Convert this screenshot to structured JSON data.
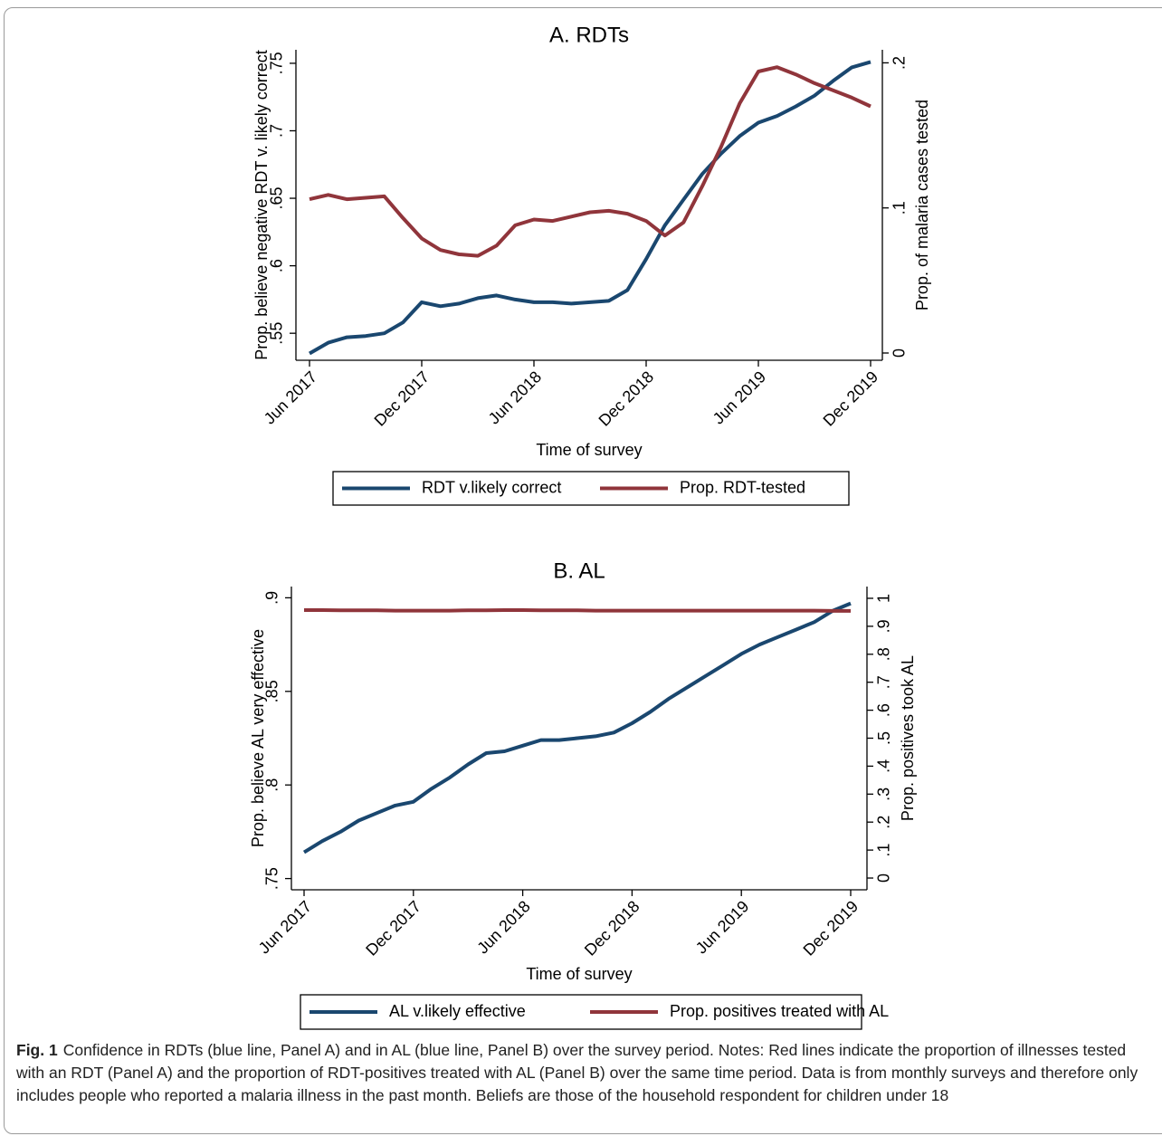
{
  "chart_data": [
    {
      "type": "line",
      "title": "A. RDTs",
      "xlabel": "Time of survey",
      "ylabel": "Prop. believe negative RDT v. likely correct",
      "y2label": "Prop. of malaria cases tested",
      "x": [
        "2017-06",
        "2017-07",
        "2017-08",
        "2017-09",
        "2017-10",
        "2017-11",
        "2017-12",
        "2018-01",
        "2018-02",
        "2018-03",
        "2018-04",
        "2018-05",
        "2018-06",
        "2018-07",
        "2018-08",
        "2018-09",
        "2018-10",
        "2018-11",
        "2018-12",
        "2019-01",
        "2019-02",
        "2019-03",
        "2019-04",
        "2019-05",
        "2019-06",
        "2019-07",
        "2019-08",
        "2019-09",
        "2019-10",
        "2019-11",
        "2019-12"
      ],
      "xticks": [
        {
          "value": "2017-06",
          "label": "Jun 2017"
        },
        {
          "value": "2017-12",
          "label": "Dec 2017"
        },
        {
          "value": "2018-06",
          "label": "Jun 2018"
        },
        {
          "value": "2018-12",
          "label": "Dec 2018"
        },
        {
          "value": "2019-06",
          "label": "Jun 2019"
        },
        {
          "value": "2019-12",
          "label": "Dec 2019"
        }
      ],
      "ylim": [
        0.53,
        0.76
      ],
      "yticks": [
        {
          "value": 0.55,
          "label": ".55"
        },
        {
          "value": 0.6,
          "label": ".6"
        },
        {
          "value": 0.65,
          "label": ".65"
        },
        {
          "value": 0.7,
          "label": ".7"
        },
        {
          "value": 0.75,
          "label": ".75"
        }
      ],
      "y2lim": [
        -0.005,
        0.209
      ],
      "y2ticks": [
        0,
        {
          "value": 0.1,
          "label": ".1"
        },
        {
          "value": 0.2,
          "label": ".2"
        }
      ],
      "series": [
        {
          "name": "RDT v.likely correct",
          "color": "#1a476f",
          "values": [
            0.535,
            0.543,
            0.547,
            0.548,
            0.55,
            0.558,
            0.573,
            0.57,
            0.572,
            0.576,
            0.578,
            0.575,
            0.573,
            0.573,
            0.572,
            0.573,
            0.574,
            0.582,
            0.605,
            0.63,
            0.649,
            0.668,
            0.683,
            0.696,
            0.706,
            0.711,
            0.718,
            0.726,
            0.737,
            0.747,
            0.751
          ]
        },
        {
          "name": "Prop. RDT-tested",
          "color": "#90353b",
          "axis": "y2",
          "values": [
            0.106,
            0.109,
            0.106,
            0.107,
            0.108,
            0.093,
            0.079,
            0.071,
            0.068,
            0.067,
            0.074,
            0.088,
            0.092,
            0.091,
            0.094,
            0.097,
            0.098,
            0.096,
            0.091,
            0.081,
            0.09,
            0.115,
            0.142,
            0.172,
            0.194,
            0.197,
            0.192,
            0.186,
            0.181,
            0.176,
            0.17
          ]
        }
      ]
    },
    {
      "type": "line",
      "title": "B. AL",
      "xlabel": "Time of survey",
      "ylabel": "Prop. believe AL very effective",
      "y2label": "Prop. positives took AL",
      "x": [
        "2017-06",
        "2017-07",
        "2017-08",
        "2017-09",
        "2017-10",
        "2017-11",
        "2017-12",
        "2018-01",
        "2018-02",
        "2018-03",
        "2018-04",
        "2018-05",
        "2018-06",
        "2018-07",
        "2018-08",
        "2018-09",
        "2018-10",
        "2018-11",
        "2018-12",
        "2019-01",
        "2019-02",
        "2019-03",
        "2019-04",
        "2019-05",
        "2019-06",
        "2019-07",
        "2019-08",
        "2019-09",
        "2019-10",
        "2019-11",
        "2019-12"
      ],
      "xticks": [
        {
          "value": "2017-06",
          "label": "Jun 2017"
        },
        {
          "value": "2017-12",
          "label": "Dec 2017"
        },
        {
          "value": "2018-06",
          "label": "Jun 2018"
        },
        {
          "value": "2018-12",
          "label": "Dec 2018"
        },
        {
          "value": "2019-06",
          "label": "Jun 2019"
        },
        {
          "value": "2019-12",
          "label": "Dec 2019"
        }
      ],
      "ylim": [
        0.744,
        0.906
      ],
      "yticks": [
        {
          "value": 0.75,
          "label": ".75"
        },
        {
          "value": 0.8,
          "label": ".8"
        },
        {
          "value": 0.85,
          "label": ".85"
        },
        {
          "value": 0.9,
          "label": ".9"
        }
      ],
      "y2lim": [
        -0.042,
        1.042
      ],
      "y2ticks": [
        0,
        {
          "value": 0.1,
          "label": ".1"
        },
        {
          "value": 0.2,
          "label": ".2"
        },
        {
          "value": 0.3,
          "label": ".3"
        },
        {
          "value": 0.4,
          "label": ".4"
        },
        {
          "value": 0.5,
          "label": ".5"
        },
        {
          "value": 0.6,
          "label": ".6"
        },
        {
          "value": 0.7,
          "label": ".7"
        },
        {
          "value": 0.8,
          "label": ".8"
        },
        {
          "value": 0.9,
          "label": ".9"
        },
        1
      ],
      "series": [
        {
          "name": "AL v.likely effective",
          "color": "#1a476f",
          "values": [
            0.764,
            0.77,
            0.775,
            0.781,
            0.785,
            0.789,
            0.791,
            0.798,
            0.804,
            0.811,
            0.817,
            0.818,
            0.821,
            0.824,
            0.824,
            0.825,
            0.826,
            0.828,
            0.833,
            0.839,
            0.846,
            0.852,
            0.858,
            0.864,
            0.87,
            0.875,
            0.879,
            0.883,
            0.887,
            0.893,
            0.897
          ]
        },
        {
          "name": "Prop. positives treated with AL",
          "color": "#90353b",
          "axis": "y2",
          "values": [
            0.958,
            0.958,
            0.957,
            0.957,
            0.957,
            0.956,
            0.956,
            0.956,
            0.956,
            0.957,
            0.957,
            0.958,
            0.958,
            0.957,
            0.957,
            0.957,
            0.956,
            0.956,
            0.956,
            0.956,
            0.956,
            0.956,
            0.956,
            0.956,
            0.956,
            0.956,
            0.956,
            0.956,
            0.956,
            0.955,
            0.955
          ]
        }
      ]
    }
  ],
  "caption": {
    "label": "Fig. 1",
    "text": "Confidence in RDTs (blue line, Panel A) and in AL (blue line, Panel B) over the survey period. Notes: Red lines indicate the proportion of illnesses tested with an RDT (Panel A) and the proportion of RDT-positives treated with AL (Panel B) over the same time period. Data is from monthly surveys and therefore only includes people who reported a malaria illness in the past month. Beliefs are those of the household respondent for children under 18"
  }
}
